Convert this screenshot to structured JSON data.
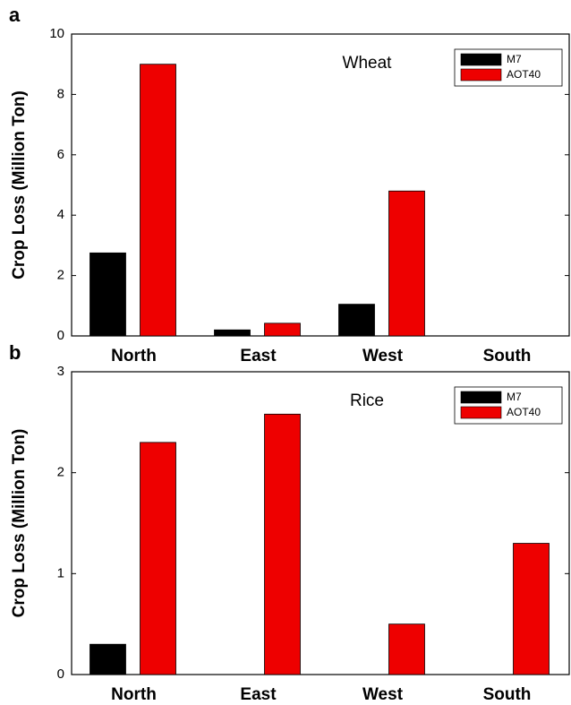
{
  "chart_data": [
    {
      "type": "bar",
      "panel_label": "a",
      "title": "Wheat",
      "ylabel": "Crop Loss (Million Ton)",
      "categories": [
        "North",
        "East",
        "West",
        "South"
      ],
      "series": [
        {
          "name": "M7",
          "color": "#000000",
          "values": [
            2.75,
            0.2,
            1.05,
            0
          ]
        },
        {
          "name": "AOT40",
          "color": "#ee0000",
          "values": [
            9.0,
            0.42,
            4.8,
            0
          ]
        }
      ],
      "ylim": [
        0,
        10
      ],
      "yticks": [
        0,
        2,
        4,
        6,
        8,
        10
      ],
      "legend": "upper right"
    },
    {
      "type": "bar",
      "panel_label": "b",
      "title": "Rice",
      "ylabel": "Crop Loss (Million Ton)",
      "categories": [
        "North",
        "East",
        "West",
        "South"
      ],
      "series": [
        {
          "name": "M7",
          "color": "#000000",
          "values": [
            0.3,
            0,
            0,
            0
          ]
        },
        {
          "name": "AOT40",
          "color": "#ee0000",
          "values": [
            2.3,
            2.58,
            0.5,
            1.3
          ]
        }
      ],
      "ylim": [
        0,
        3
      ],
      "yticks": [
        0,
        1,
        2,
        3
      ],
      "legend": "upper right"
    }
  ]
}
